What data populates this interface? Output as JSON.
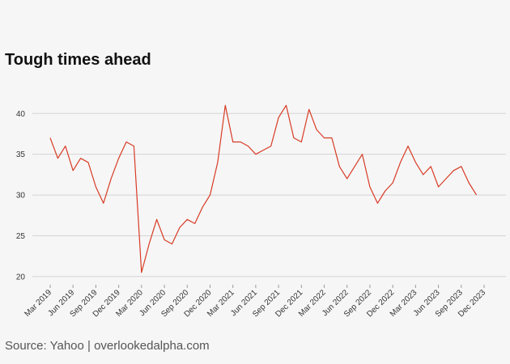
{
  "chart_data": {
    "type": "line",
    "title": "Tough times ahead",
    "source": "Source: Yahoo | overlookedalpha.com",
    "x": [
      "2019-03",
      "2019-04",
      "2019-05",
      "2019-06",
      "2019-07",
      "2019-08",
      "2019-09",
      "2019-10",
      "2019-11",
      "2019-12",
      "2020-01",
      "2020-02",
      "2020-03",
      "2020-04",
      "2020-05",
      "2020-06",
      "2020-07",
      "2020-08",
      "2020-09",
      "2020-10",
      "2020-11",
      "2020-12",
      "2021-01",
      "2021-02",
      "2021-03",
      "2021-04",
      "2021-05",
      "2021-06",
      "2021-07",
      "2021-08",
      "2021-09",
      "2021-10",
      "2021-11",
      "2021-12",
      "2022-01",
      "2022-02",
      "2022-03",
      "2022-04",
      "2022-05",
      "2022-06",
      "2022-07",
      "2022-08",
      "2022-09",
      "2022-10",
      "2022-11",
      "2022-12",
      "2023-01",
      "2023-02",
      "2023-03",
      "2023-04",
      "2023-05",
      "2023-06",
      "2023-07",
      "2023-08",
      "2023-09",
      "2023-10",
      "2023-11"
    ],
    "series": [
      {
        "color": "#d83a24",
        "values": [
          37,
          34.5,
          36,
          33,
          34.5,
          34,
          31,
          29,
          32,
          34.5,
          36.5,
          36,
          20.5,
          24,
          27,
          24.5,
          24,
          26,
          27,
          26.5,
          28.5,
          30,
          34,
          41,
          36.5,
          36.5,
          36,
          35,
          35.5,
          36,
          39.5,
          41,
          37,
          36.5,
          40.5,
          38,
          37,
          37,
          33.5,
          32,
          33.5,
          35,
          31,
          29,
          30.5,
          31.5,
          34,
          36,
          34,
          32.5,
          33.5,
          31,
          32,
          33,
          33.5,
          31.5,
          30
        ]
      }
    ],
    "ylim": [
      19,
      43
    ],
    "yticks": [
      20,
      25,
      30,
      35,
      40
    ],
    "grid": true,
    "xticks": [
      {
        "value": "2019-03",
        "label": "Mar 2019"
      },
      {
        "value": "2019-06",
        "label": "Jun 2019"
      },
      {
        "value": "2019-09",
        "label": "Sep 2019"
      },
      {
        "value": "2019-12",
        "label": "Dec 2019"
      },
      {
        "value": "2020-03",
        "label": "Mar 2020"
      },
      {
        "value": "2020-06",
        "label": "Jun 2020"
      },
      {
        "value": "2020-09",
        "label": "Sep 2020"
      },
      {
        "value": "2020-12",
        "label": "Dec 2020"
      },
      {
        "value": "2021-03",
        "label": "Mar 2021"
      },
      {
        "value": "2021-06",
        "label": "Jun 2021"
      },
      {
        "value": "2021-09",
        "label": "Sep 2021"
      },
      {
        "value": "2021-12",
        "label": "Dec 2021"
      },
      {
        "value": "2022-03",
        "label": "Mar 2022"
      },
      {
        "value": "2022-06",
        "label": "Jun 2022"
      },
      {
        "value": "2022-09",
        "label": "Sep 2022"
      },
      {
        "value": "2022-12",
        "label": "Dec 2022"
      },
      {
        "value": "2023-03",
        "label": "Mar 2023"
      },
      {
        "value": "2023-06",
        "label": "Jun 2023"
      },
      {
        "value": "2023-09",
        "label": "Sep 2023"
      },
      {
        "value": "2023-12",
        "label": "Dec 2023"
      }
    ]
  }
}
